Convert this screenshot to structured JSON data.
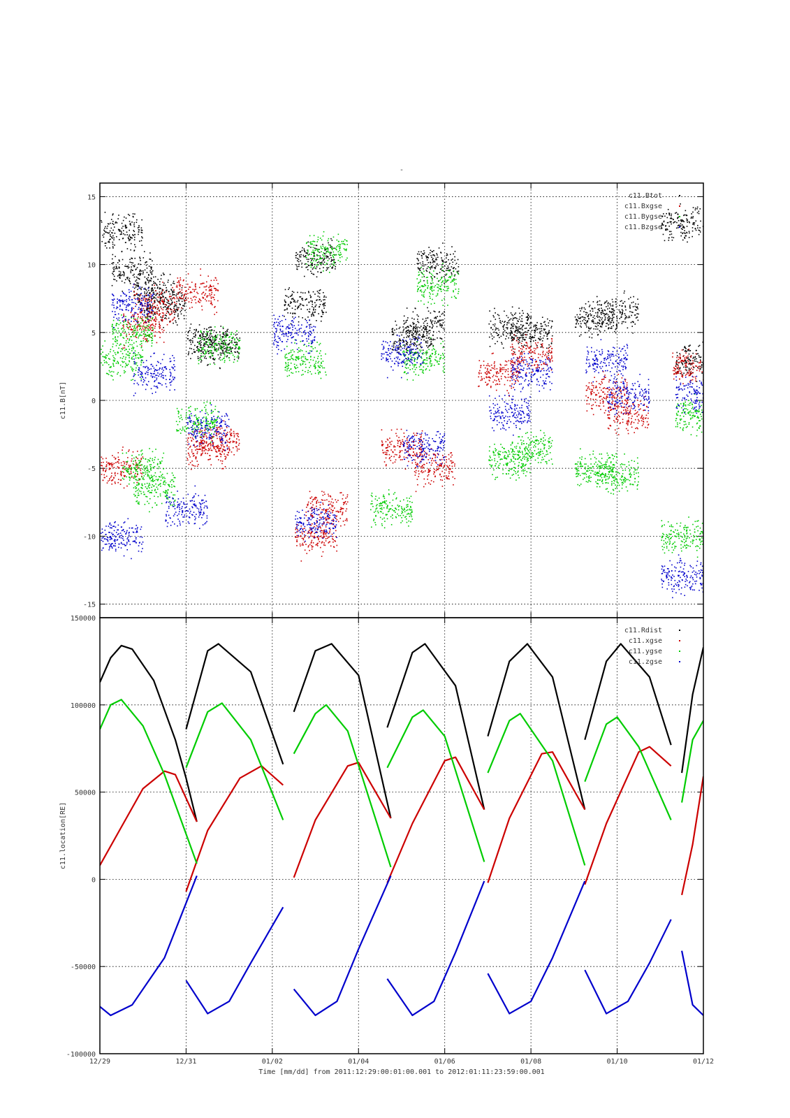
{
  "title": "-",
  "x_axis": {
    "label": "Time [mm/dd]  from 2011:12:29:00:01:00.001  to  2012:01:11:23:59:00.001",
    "start": "2011-12-29T00:01",
    "end": "2012-01-12T00:00",
    "ticks": [
      "12/29",
      "12/31",
      "01/02",
      "01/04",
      "01/06",
      "01/08",
      "01/10",
      "01/12"
    ]
  },
  "colors": {
    "black": "#000000",
    "red": "#cc0000",
    "green": "#00cc00",
    "blue": "#0000cc"
  },
  "chart_data": [
    {
      "type": "scatter",
      "ylabel": "c11.B[nT]",
      "ylim": [
        -16,
        16
      ],
      "yticks": [
        15,
        10,
        5,
        0,
        -5,
        -10,
        -15
      ],
      "ytick_labels": [
        "15",
        "10",
        "5",
        "0",
        "-5",
        "-10",
        "-15"
      ],
      "grid": true,
      "legend_position": "top-right",
      "series": [
        {
          "name": "c11.Btot",
          "color": "#000000",
          "points": [
            [
              "12/29 12:00",
              12.5
            ],
            [
              "12/29 18:00",
              9.5
            ],
            [
              "12/30 06:00",
              8.0
            ],
            [
              "12/30 12:00",
              7.0
            ],
            [
              "12/31 12:00",
              4.5
            ],
            [
              "12/31 18:00",
              4.0
            ],
            [
              "01/02 18:00",
              7.0
            ],
            [
              "01/03 00:00",
              10.5
            ],
            [
              "01/05 06:00",
              4.5
            ],
            [
              "01/05 12:00",
              5.5
            ],
            [
              "01/05 20:00",
              10.0
            ],
            [
              "01/07 12:00",
              5.5
            ],
            [
              "01/08 00:00",
              5.0
            ],
            [
              "01/09 12:00",
              6.0
            ],
            [
              "01/10 00:00",
              6.5
            ],
            [
              "01/11 12:00",
              13.0
            ],
            [
              "01/11 20:00",
              3.0
            ]
          ]
        },
        {
          "name": "c11.Bxgse",
          "color": "#cc0000",
          "points": [
            [
              "12/29 12:00",
              -5.0
            ],
            [
              "12/30 00:00",
              5.5
            ],
            [
              "12/30 06:00",
              7.0
            ],
            [
              "12/31 06:00",
              8.0
            ],
            [
              "12/31 12:00",
              -3.5
            ],
            [
              "12/31 18:00",
              -3.0
            ],
            [
              "01/03 00:00",
              -10.0
            ],
            [
              "01/03 06:00",
              -8.0
            ],
            [
              "01/05 00:00",
              -3.5
            ],
            [
              "01/05 18:00",
              -5.0
            ],
            [
              "01/07 06:00",
              2.0
            ],
            [
              "01/08 00:00",
              3.5
            ],
            [
              "01/09 18:00",
              0.5
            ],
            [
              "01/10 06:00",
              -1.0
            ],
            [
              "01/11 18:00",
              2.5
            ]
          ]
        },
        {
          "name": "c11.Bygse",
          "color": "#00cc00",
          "points": [
            [
              "12/29 12:00",
              3.0
            ],
            [
              "12/29 18:00",
              5.0
            ],
            [
              "12/30 00:00",
              -5.0
            ],
            [
              "12/30 06:00",
              -6.5
            ],
            [
              "12/31 06:00",
              -1.5
            ],
            [
              "12/31 18:00",
              4.0
            ],
            [
              "01/02 18:00",
              3.0
            ],
            [
              "01/03 06:00",
              11.0
            ],
            [
              "01/04 18:00",
              -8.0
            ],
            [
              "01/05 12:00",
              3.0
            ],
            [
              "01/05 20:00",
              8.5
            ],
            [
              "01/07 12:00",
              -4.5
            ],
            [
              "01/08 00:00",
              -3.5
            ],
            [
              "01/09 12:00",
              -5.0
            ],
            [
              "01/10 00:00",
              -5.5
            ],
            [
              "01/11 12:00",
              -10.0
            ],
            [
              "01/11 20:00",
              -1.0
            ]
          ]
        },
        {
          "name": "c11.Bzgse",
          "color": "#0000cc",
          "points": [
            [
              "12/29 12:00",
              -10.0
            ],
            [
              "12/29 18:00",
              7.0
            ],
            [
              "12/30 06:00",
              2.0
            ],
            [
              "12/31 00:00",
              -8.0
            ],
            [
              "12/31 12:00",
              -2.0
            ],
            [
              "01/02 12:00",
              5.0
            ],
            [
              "01/03 00:00",
              -9.0
            ],
            [
              "01/05 00:00",
              3.5
            ],
            [
              "01/05 12:00",
              -3.5
            ],
            [
              "01/07 12:00",
              -1.0
            ],
            [
              "01/08 00:00",
              2.0
            ],
            [
              "01/09 18:00",
              3.0
            ],
            [
              "01/10 06:00",
              0.5
            ],
            [
              "01/11 12:00",
              -13.0
            ],
            [
              "01/11 20:00",
              0.5
            ]
          ]
        }
      ]
    },
    {
      "type": "line",
      "ylabel": "c11.location[RE]",
      "ylim": [
        -100000,
        150000
      ],
      "yticks": [
        150000,
        100000,
        50000,
        0,
        -50000,
        -100000
      ],
      "ytick_labels": [
        "150000",
        "100000",
        "50000",
        "0",
        "-50000",
        "-100000"
      ],
      "grid": true,
      "legend_position": "top-right",
      "series": [
        {
          "name": "c11.Rdist",
          "color": "#000000",
          "segments": [
            [
              [
                "12/29 00:01",
                113000
              ],
              [
                "12/29 06:00",
                127000
              ],
              [
                "12/29 12:00",
                134000
              ],
              [
                "12/29 18:00",
                132000
              ],
              [
                "12/30 06:00",
                114000
              ],
              [
                "12/30 18:00",
                80000
              ],
              [
                "12/31 00:00",
                58000
              ],
              [
                "12/31 06:00",
                33000
              ]
            ],
            [
              [
                "12/31 00:00",
                86000
              ],
              [
                "12/31 12:00",
                131000
              ],
              [
                "12/31 18:00",
                135000
              ],
              [
                "01/01 12:00",
                119000
              ],
              [
                "01/02 06:00",
                66000
              ]
            ],
            [
              [
                "01/02 12:00",
                96000
              ],
              [
                "01/03 00:00",
                131000
              ],
              [
                "01/03 09:00",
                135000
              ],
              [
                "01/04 00:00",
                117000
              ],
              [
                "01/04 18:00",
                35000
              ]
            ],
            [
              [
                "01/04 16:00",
                87000
              ],
              [
                "01/05 06:00",
                130000
              ],
              [
                "01/05 13:00",
                135000
              ],
              [
                "01/06 06:00",
                111000
              ],
              [
                "01/06 22:00",
                40000
              ]
            ],
            [
              [
                "01/07 00:00",
                82000
              ],
              [
                "01/07 12:00",
                125000
              ],
              [
                "01/07 22:00",
                135000
              ],
              [
                "01/08 12:00",
                116000
              ],
              [
                "01/09 06:00",
                40000
              ]
            ],
            [
              [
                "01/09 06:00",
                80000
              ],
              [
                "01/09 18:00",
                125000
              ],
              [
                "01/10 02:00",
                135000
              ],
              [
                "01/10 18:00",
                116000
              ],
              [
                "01/11 06:00",
                77000
              ]
            ],
            [
              [
                "01/11 12:00",
                61000
              ],
              [
                "01/11 18:00",
                106000
              ],
              [
                "01/12 00:00",
                133000
              ]
            ]
          ]
        },
        {
          "name": "c11.xgse",
          "color": "#cc0000",
          "segments": [
            [
              [
                "12/29 00:01",
                8000
              ],
              [
                "12/29 12:00",
                30000
              ],
              [
                "12/30 00:00",
                52000
              ],
              [
                "12/30 12:00",
                62000
              ],
              [
                "12/30 18:00",
                60000
              ],
              [
                "12/31 06:00",
                33000
              ]
            ],
            [
              [
                "12/31 00:00",
                -7000
              ],
              [
                "12/31 12:00",
                28000
              ],
              [
                "01/01 06:00",
                58000
              ],
              [
                "01/01 18:00",
                65000
              ],
              [
                "01/02 06:00",
                54000
              ]
            ],
            [
              [
                "01/02 12:00",
                1000
              ],
              [
                "01/03 00:00",
                34000
              ],
              [
                "01/03 18:00",
                65000
              ],
              [
                "01/04 00:00",
                67000
              ],
              [
                "01/04 18:00",
                35000
              ]
            ],
            [
              [
                "01/04 16:00",
                -2000
              ],
              [
                "01/05 06:00",
                32000
              ],
              [
                "01/06 00:00",
                68000
              ],
              [
                "01/06 06:00",
                70000
              ],
              [
                "01/06 22:00",
                40000
              ]
            ],
            [
              [
                "01/07 00:00",
                -2000
              ],
              [
                "01/07 12:00",
                35000
              ],
              [
                "01/08 06:00",
                72000
              ],
              [
                "01/08 12:00",
                73000
              ],
              [
                "01/09 06:00",
                40000
              ]
            ],
            [
              [
                "01/09 06:00",
                -3000
              ],
              [
                "01/09 18:00",
                32000
              ],
              [
                "01/10 12:00",
                73000
              ],
              [
                "01/10 18:00",
                76000
              ],
              [
                "01/11 06:00",
                65000
              ]
            ],
            [
              [
                "01/11 12:00",
                -9000
              ],
              [
                "01/11 18:00",
                20000
              ],
              [
                "01/12 00:00",
                59000
              ]
            ]
          ]
        },
        {
          "name": "c11.ygse",
          "color": "#00cc00",
          "segments": [
            [
              [
                "12/29 00:01",
                86000
              ],
              [
                "12/29 06:00",
                100000
              ],
              [
                "12/29 12:00",
                103000
              ],
              [
                "12/30 00:00",
                88000
              ],
              [
                "12/30 12:00",
                60000
              ],
              [
                "12/31 06:00",
                9000
              ]
            ],
            [
              [
                "12/31 00:00",
                64000
              ],
              [
                "12/31 12:00",
                96000
              ],
              [
                "12/31 20:00",
                101000
              ],
              [
                "01/01 12:00",
                80000
              ],
              [
                "01/02 06:00",
                34000
              ]
            ],
            [
              [
                "01/02 12:00",
                72000
              ],
              [
                "01/03 00:00",
                95000
              ],
              [
                "01/03 06:00",
                100000
              ],
              [
                "01/03 18:00",
                85000
              ],
              [
                "01/04 18:00",
                7000
              ]
            ],
            [
              [
                "01/04 16:00",
                64000
              ],
              [
                "01/05 06:00",
                93000
              ],
              [
                "01/05 12:00",
                97000
              ],
              [
                "01/06 00:00",
                82000
              ],
              [
                "01/06 22:00",
                10000
              ]
            ],
            [
              [
                "01/07 00:00",
                61000
              ],
              [
                "01/07 12:00",
                91000
              ],
              [
                "01/07 18:00",
                95000
              ],
              [
                "01/08 12:00",
                68000
              ],
              [
                "01/09 06:00",
                8000
              ]
            ],
            [
              [
                "01/09 06:00",
                56000
              ],
              [
                "01/09 18:00",
                89000
              ],
              [
                "01/10 00:00",
                93000
              ],
              [
                "01/10 12:00",
                76000
              ],
              [
                "01/11 06:00",
                34000
              ]
            ],
            [
              [
                "01/11 12:00",
                44000
              ],
              [
                "01/11 18:00",
                80000
              ],
              [
                "01/12 00:00",
                91000
              ]
            ]
          ]
        },
        {
          "name": "c11.zgse",
          "color": "#0000cc",
          "segments": [
            [
              [
                "12/29 00:01",
                -73000
              ],
              [
                "12/29 06:00",
                -78000
              ],
              [
                "12/29 18:00",
                -72000
              ],
              [
                "12/30 12:00",
                -45000
              ],
              [
                "12/31 06:00",
                2000
              ]
            ],
            [
              [
                "12/31 00:00",
                -58000
              ],
              [
                "12/31 12:00",
                -77000
              ],
              [
                "01/01 00:00",
                -70000
              ],
              [
                "01/01 12:00",
                -48000
              ],
              [
                "01/02 06:00",
                -16000
              ]
            ],
            [
              [
                "01/02 12:00",
                -63000
              ],
              [
                "01/03 00:00",
                -78000
              ],
              [
                "01/03 12:00",
                -70000
              ],
              [
                "01/04 00:00",
                -40000
              ],
              [
                "01/04 18:00",
                2000
              ]
            ],
            [
              [
                "01/04 16:00",
                -57000
              ],
              [
                "01/05 06:00",
                -78000
              ],
              [
                "01/05 18:00",
                -70000
              ],
              [
                "01/06 06:00",
                -42000
              ],
              [
                "01/06 22:00",
                -1000
              ]
            ],
            [
              [
                "01/07 00:00",
                -54000
              ],
              [
                "01/07 12:00",
                -77000
              ],
              [
                "01/08 00:00",
                -70000
              ],
              [
                "01/08 12:00",
                -45000
              ],
              [
                "01/09 06:00",
                -1000
              ]
            ],
            [
              [
                "01/09 06:00",
                -52000
              ],
              [
                "01/09 18:00",
                -77000
              ],
              [
                "01/10 06:00",
                -70000
              ],
              [
                "01/10 18:00",
                -48000
              ],
              [
                "01/11 06:00",
                -23000
              ]
            ],
            [
              [
                "01/11 12:00",
                -41000
              ],
              [
                "01/11 18:00",
                -72000
              ],
              [
                "01/12 00:00",
                -78000
              ]
            ]
          ]
        }
      ]
    }
  ]
}
